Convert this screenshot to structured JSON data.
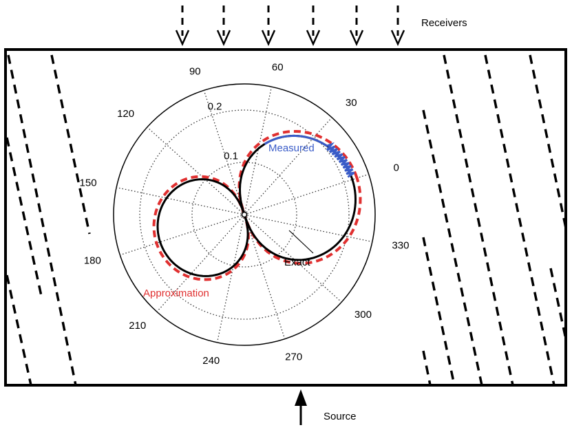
{
  "receivers_label": "Receivers",
  "source_label": "Source",
  "polar": {
    "angle_labels": [
      0,
      30,
      60,
      90,
      120,
      150,
      180,
      210,
      240,
      270,
      300,
      330
    ],
    "radial_labels": [
      0.1,
      0.2
    ],
    "measured_label": "Measured",
    "exact_label": "Exact",
    "approximation_label": "Approximation"
  }
}
